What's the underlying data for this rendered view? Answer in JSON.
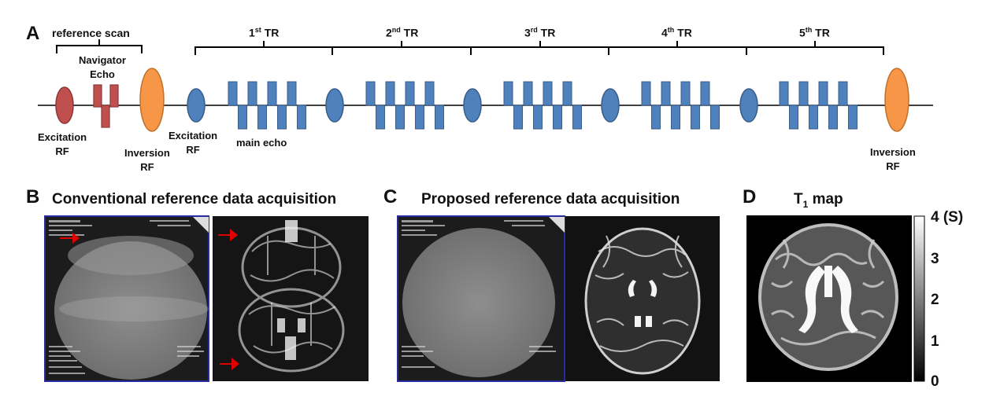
{
  "panelA": {
    "letter": "A",
    "reference_scan": "reference scan",
    "navigator_echo_line1": "Navigator",
    "navigator_echo_line2": "Echo",
    "excitation_rf_line1": "Excitation",
    "excitation_rf_line2": "RF",
    "inversion_rf_line1": "Inversion",
    "inversion_rf_line2": "RF",
    "excitation2_line1": "Excitation",
    "excitation2_line2": "RF",
    "main_echo": "main echo",
    "inversion_end_line1": "Inversion",
    "inversion_end_line2": "RF",
    "tr_labels": [
      {
        "num": "1",
        "sup": "st",
        "tail": " TR"
      },
      {
        "num": "2",
        "sup": "nd",
        "tail": " TR"
      },
      {
        "num": "3",
        "sup": "rd",
        "tail": " TR"
      },
      {
        "num": "4",
        "sup": "th",
        "tail": " TR"
      },
      {
        "num": "5",
        "sup": "th",
        "tail": " TR"
      }
    ],
    "colors": {
      "excitation_ref": "#c0504d",
      "navigator": "#c0504d",
      "inversion": "#f79646",
      "pulse_blue": "#4f81bd"
    }
  },
  "panelB": {
    "letter": "B",
    "title": "Conventional reference data acquisition"
  },
  "panelC": {
    "letter": "C",
    "title": "Proposed reference data acquisition"
  },
  "panelD": {
    "letter": "D",
    "title_main": "T",
    "title_sub": "1",
    "title_tail": " map",
    "colorbar_ticks": [
      "4 (S)",
      "3",
      "2",
      "1",
      "0"
    ]
  }
}
